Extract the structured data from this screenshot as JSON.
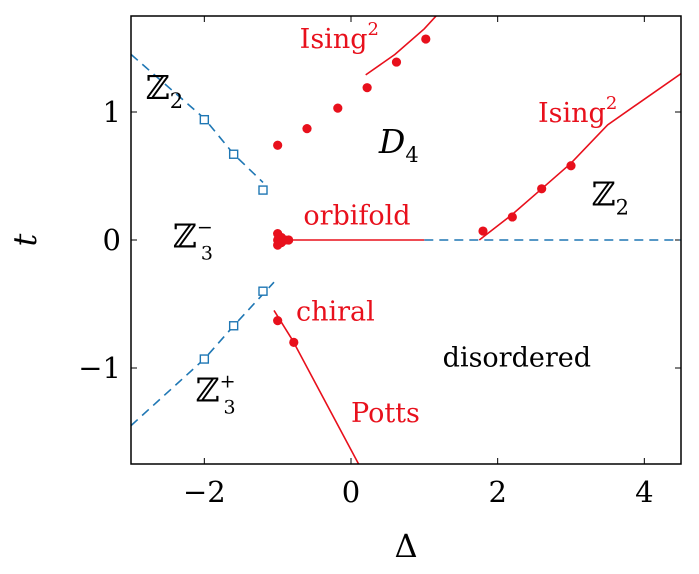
{
  "chart_data": {
    "type": "scatter",
    "xlabel": "Δ",
    "ylabel": "t",
    "xlim": [
      -3,
      4.5
    ],
    "ylim": [
      -1.75,
      1.75
    ],
    "xticks": [
      {
        "value": -2,
        "label": "−2"
      },
      {
        "value": 0,
        "label": "0"
      },
      {
        "value": 2,
        "label": "2"
      },
      {
        "value": 4,
        "label": "4"
      }
    ],
    "yticks": [
      {
        "value": 1,
        "label": "1"
      },
      {
        "value": 0,
        "label": "0"
      },
      {
        "value": -1,
        "label": "−1"
      }
    ],
    "colors": {
      "red": "#e8101c",
      "blue": "#1f77b4"
    },
    "series": [
      {
        "marker": "circle",
        "color": "#e8101c",
        "points": [
          [
            -1.0,
            0.74
          ],
          [
            -0.6,
            0.87
          ],
          [
            -0.18,
            1.03
          ],
          [
            0.22,
            1.19
          ],
          [
            0.62,
            1.39
          ],
          [
            1.02,
            1.57
          ],
          [
            1.8,
            0.07
          ],
          [
            2.2,
            0.18
          ],
          [
            2.6,
            0.4
          ],
          [
            3.0,
            0.58
          ],
          [
            -1.0,
            -0.63
          ],
          [
            -0.78,
            -0.8
          ],
          [
            -1.0,
            0.05
          ],
          [
            -1.0,
            0.0
          ],
          [
            -1.0,
            -0.04
          ],
          [
            -0.95,
            0.02
          ],
          [
            -0.95,
            -0.02
          ],
          [
            -0.9,
            0.0
          ],
          [
            -0.85,
            0.0
          ]
        ]
      },
      {
        "marker": "square-open",
        "color": "#1f77b4",
        "points": [
          [
            -2.0,
            0.94
          ],
          [
            -1.6,
            0.67
          ],
          [
            -1.2,
            0.39
          ],
          [
            -2.0,
            -0.93
          ],
          [
            -1.6,
            -0.67
          ],
          [
            -1.2,
            -0.4
          ]
        ]
      }
    ],
    "lines": [
      {
        "color": "#e8101c",
        "style": "solid",
        "points": [
          [
            0.2,
            1.29
          ],
          [
            0.6,
            1.45
          ],
          [
            1.0,
            1.65
          ],
          [
            1.4,
            1.9
          ]
        ]
      },
      {
        "color": "#e8101c",
        "style": "solid",
        "points": [
          [
            1.75,
            0.0
          ],
          [
            2.2,
            0.2
          ],
          [
            2.6,
            0.4
          ],
          [
            3.0,
            0.6
          ],
          [
            3.5,
            0.9
          ],
          [
            4.5,
            1.3
          ]
        ]
      },
      {
        "color": "#e8101c",
        "style": "solid",
        "points": [
          [
            -0.9,
            0.0
          ],
          [
            1.0,
            0.0
          ]
        ]
      },
      {
        "color": "#1f77b4",
        "style": "dashed",
        "points": [
          [
            1.0,
            0.0
          ],
          [
            4.5,
            0.0
          ]
        ]
      },
      {
        "color": "#e8101c",
        "style": "solid",
        "points": [
          [
            -1.05,
            -0.55
          ],
          [
            -0.8,
            -0.78
          ],
          [
            0.15,
            -1.8
          ]
        ]
      },
      {
        "color": "#1f77b4",
        "style": "dashed",
        "points": [
          [
            -3.0,
            1.45
          ],
          [
            -2.0,
            0.95
          ],
          [
            -1.6,
            0.67
          ],
          [
            -1.2,
            0.45
          ]
        ]
      },
      {
        "color": "#1f77b4",
        "style": "dashed",
        "points": [
          [
            -3.0,
            -1.45
          ],
          [
            -2.0,
            -0.93
          ],
          [
            -1.6,
            -0.67
          ],
          [
            -1.05,
            -0.33
          ]
        ]
      }
    ],
    "annotations": [
      {
        "main": "ℤ",
        "sub": "2",
        "color": "black",
        "x": -2.8,
        "y": 1.1
      },
      {
        "main": "D",
        "sub": "4",
        "color": "black",
        "x": 0.38,
        "y": 0.68
      },
      {
        "main": "ℤ",
        "sub": "2",
        "color": "black",
        "x": 3.28,
        "y": 0.27
      },
      {
        "main": "ℤ",
        "sub": "3",
        "sup": "−",
        "color": "black",
        "x": -2.43,
        "y": -0.06
      },
      {
        "main": "ℤ",
        "sub": "3",
        "sup": "+",
        "color": "black",
        "x": -2.12,
        "y": -1.26
      },
      {
        "main": "Ising",
        "sup": "2",
        "color": "red",
        "x": -0.7,
        "y": 1.5
      },
      {
        "main": "Ising",
        "sup": "2",
        "color": "red",
        "x": 2.55,
        "y": 0.92
      },
      {
        "main": "orbifold",
        "color": "red",
        "x": -0.65,
        "y": 0.12
      },
      {
        "main": "chiral",
        "color": "red",
        "x": -0.75,
        "y": -0.63
      },
      {
        "main": "disordered",
        "color": "black",
        "x": 1.25,
        "y": -0.99
      },
      {
        "main": "Potts",
        "color": "red",
        "x": 0.0,
        "y": -1.42
      }
    ]
  }
}
